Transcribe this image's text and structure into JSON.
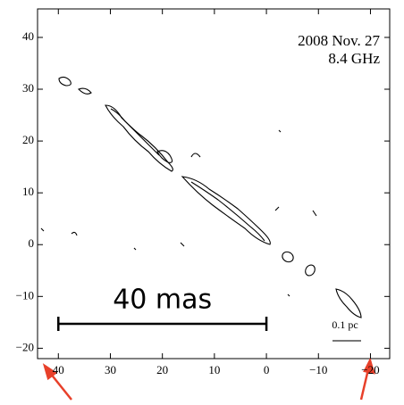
{
  "chart_data": {
    "type": "contour",
    "annotations": [
      "2008 Nov. 27",
      "8.4 GHz"
    ],
    "xlim": [
      44,
      -23.7
    ],
    "ylim": [
      -22,
      45.5
    ],
    "xticks": [
      40,
      30,
      20,
      10,
      0,
      {
        "value": -10,
        "label": "−10"
      },
      {
        "value": -20,
        "label": "−20"
      }
    ],
    "yticks": [
      {
        "value": -20,
        "label": "−20"
      },
      {
        "value": -10,
        "label": "−10"
      },
      0,
      10,
      20,
      30,
      40
    ],
    "scale_bar": {
      "from": 40,
      "to": 0,
      "label": "40 mas"
    },
    "linear_scale_label": "0.1 pc"
  }
}
